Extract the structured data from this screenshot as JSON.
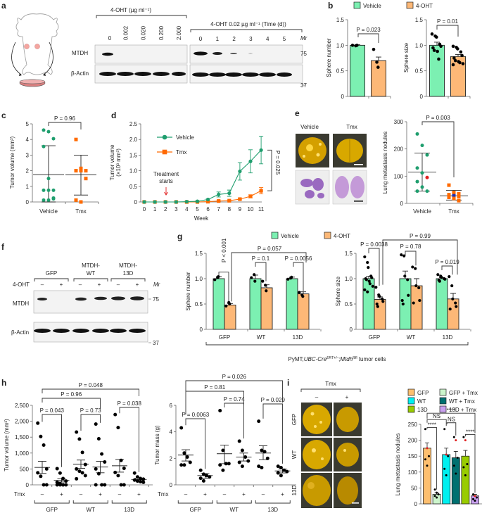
{
  "panels": {
    "a": {
      "label": "a",
      "blot1_title": "4-OHT (µg ml⁻¹)",
      "blot1_lanes": [
        "0",
        "0.002",
        "0.020",
        "0.200",
        "2.000"
      ],
      "blot2_title": "4-OHT 0.02 µg ml⁻¹ (Time (d))",
      "blot2_lanes": [
        "0",
        "1",
        "2",
        "3",
        "4",
        "5"
      ],
      "rows": [
        "MTDH",
        "β-Actin"
      ],
      "mr_label": "Mr",
      "markers": [
        "75",
        "37"
      ]
    },
    "b": {
      "label": "b"
    },
    "c": {
      "label": "c"
    },
    "d": {
      "label": "d"
    },
    "e": {
      "label": "e",
      "image_labels": [
        "Vehicle",
        "Tmx"
      ]
    },
    "f": {
      "label": "f",
      "groups": [
        "GFP",
        "MTDH-\nWT",
        "MTDH-\n13D"
      ],
      "group_line1": [
        "GFP",
        "MTDH-",
        "MTDH-"
      ],
      "group_line2": [
        "",
        "WT",
        "13D"
      ],
      "treatment_label": "4-OHT",
      "signs": [
        "–",
        "+",
        "–",
        "+",
        "–",
        "+"
      ],
      "rows": [
        "MTDH",
        "β-Actin"
      ],
      "mr_label": "Mr",
      "markers": [
        "75",
        "37"
      ]
    },
    "g": {
      "label": "g",
      "footer": "PyMT;UBC-CreERT+/–;Mtdhfl/fl tumor cells",
      "footer_parts": [
        "PyMT;",
        "UBC-Cre",
        "ERT+/–",
        ";",
        "Mtdh",
        "fl/fl",
        " tumor cells"
      ]
    },
    "h": {
      "label": "h",
      "tmx_label": "Tmx"
    },
    "i": {
      "label": "i",
      "tmx_label": "Tmx",
      "row_labels": [
        "GFP",
        "WT",
        "13D"
      ],
      "col_labels": [
        "–",
        "+"
      ]
    }
  },
  "legend_vehicle_4oht": {
    "items": [
      {
        "label": "Vehicle",
        "color": "#7cf0b2"
      },
      {
        "label": "4-OHT",
        "color": "#fdb877"
      }
    ]
  },
  "legend_i": {
    "items": [
      {
        "label": "GFP",
        "color": "#fdbf6f"
      },
      {
        "label": "GFP + Tmx",
        "color": "#ccf5cc"
      },
      {
        "label": "WT",
        "color": "#00f0f0"
      },
      {
        "label": "WT + Tmx",
        "color": "#007070"
      },
      {
        "label": "13D",
        "color": "#99cc00"
      },
      {
        "label": "13D + Tmx",
        "color": "#c9a0f0"
      }
    ]
  },
  "chart_data": [
    {
      "id": "b1",
      "type": "bar",
      "ylabel": "Sphere number",
      "ylim": [
        0,
        1.5
      ],
      "yticks": [
        "0",
        "0.5",
        "1.0",
        "1.5"
      ],
      "categories": [
        "Vehicle",
        "4-OHT"
      ],
      "values": [
        1.0,
        0.7
      ],
      "errors": [
        0.01,
        0.07
      ],
      "points": [
        [
          1.0,
          0.99,
          1.0
        ],
        [
          0.92,
          0.67,
          0.57
        ]
      ],
      "annotations": [
        {
          "text": "P = 0.023"
        }
      ]
    },
    {
      "id": "b2",
      "type": "bar",
      "ylabel": "Sphere size",
      "ylim": [
        0,
        1.5
      ],
      "yticks": [
        "0",
        "0.5",
        "1.0",
        "1.5"
      ],
      "categories": [
        "Vehicle",
        "4-OHT"
      ],
      "values": [
        1.0,
        0.78
      ],
      "errors": [
        0.06,
        0.04
      ],
      "points": [
        [
          1.22,
          1.18,
          1.16,
          1.02,
          0.98,
          0.95,
          0.9,
          0.88,
          0.73
        ],
        [
          0.98,
          0.96,
          0.93,
          0.87,
          0.8,
          0.75,
          0.7,
          0.68,
          0.66,
          0.64,
          0.62
        ]
      ],
      "annotations": [
        {
          "text": "P = 0.01"
        }
      ]
    },
    {
      "id": "c",
      "type": "scatter",
      "ylabel": "Tumor volume (mm³)",
      "ylim": [
        0,
        5
      ],
      "yticks": [
        "0",
        "1",
        "2",
        "3",
        "4",
        "5"
      ],
      "categories": [
        "Vehicle",
        "Tmx"
      ],
      "means": [
        1.75,
        1.73
      ],
      "sd_upper": [
        3.6,
        3.0
      ],
      "sd_lower": [
        0,
        0.44
      ],
      "points": [
        [
          4.6,
          4.5,
          4.05,
          3.55,
          1.5,
          0.75,
          0.75,
          0.75,
          0.2,
          0.12,
          0.12,
          0.25
        ],
        [
          4.0,
          2.15,
          2.0,
          2.0,
          2.0,
          1.5,
          0.12,
          0.0
        ]
      ],
      "annotations": [
        {
          "text": "P = 0.96"
        }
      ]
    },
    {
      "id": "d",
      "type": "line",
      "xlabel": "Week",
      "ylabel": "Tumor volume",
      "ylabel2": "(×10³ mm³)",
      "ylim": [
        0,
        2.5
      ],
      "yticks": [
        "0",
        "0.5",
        "1.0",
        "1.5",
        "2.0",
        "2.5"
      ],
      "x": [
        0,
        1,
        2,
        3,
        4,
        5,
        6,
        7,
        8,
        9,
        10,
        11
      ],
      "series": [
        {
          "name": "Vehicle",
          "color": "#1f9e6e",
          "values": [
            0,
            0,
            0,
            0,
            0.01,
            0.02,
            0.08,
            0.24,
            0.28,
            0.98,
            1.3,
            1.66
          ],
          "errors": [
            0,
            0,
            0,
            0,
            0,
            0.01,
            0.02,
            0.08,
            0.1,
            0.28,
            0.37,
            0.44
          ]
        },
        {
          "name": "Tmx",
          "color": "#ff6a00",
          "values": [
            0,
            0,
            0,
            0,
            0,
            0,
            0.01,
            0.03,
            0.04,
            0.09,
            0.18,
            0.36
          ],
          "errors": [
            0,
            0,
            0,
            0,
            0,
            0,
            0,
            0.01,
            0.01,
            0.02,
            0.05,
            0.1
          ]
        }
      ],
      "annotations": [
        {
          "text": "Treatment\nstarts",
          "line1": "Treatment",
          "line2": "starts",
          "x": 2
        },
        {
          "text": "P = 0.025"
        }
      ]
    },
    {
      "id": "e",
      "type": "scatter",
      "ylabel": "Lung metastasis nodules",
      "ylim": [
        0,
        300
      ],
      "yticks": [
        "0",
        "100",
        "200",
        "300"
      ],
      "categories": [
        "Vehicle",
        "Tmx"
      ],
      "means": [
        115,
        28
      ],
      "sd_upper": [
        185,
        48
      ],
      "sd_lower": [
        45,
        12
      ],
      "points": [
        [
          255,
          213,
          178,
          130,
          112,
          95,
          80,
          60,
          45,
          45
        ],
        [
          67,
          40,
          35,
          32,
          28,
          25,
          22,
          18,
          10
        ]
      ],
      "annotations": [
        {
          "text": "P = 0.003"
        }
      ]
    },
    {
      "id": "g1",
      "type": "bar",
      "ylabel": "Sphere number",
      "ylim": [
        0,
        1.5
      ],
      "yticks": [
        "0",
        "0.5",
        "1.0",
        "1.5"
      ],
      "categories": [
        "GFP",
        "WT",
        "13D"
      ],
      "series": [
        {
          "name": "Vehicle",
          "values": [
            1.0,
            1.0,
            1.0
          ],
          "errors": [
            0.04,
            0.07,
            0.03
          ]
        },
        {
          "name": "4-OHT",
          "values": [
            0.48,
            0.82,
            0.7
          ],
          "errors": [
            0.03,
            0.06,
            0.04
          ]
        }
      ],
      "points": [
        [
          [
            0.98,
            1.02,
            1.04
          ],
          [
            0.46,
            0.53,
            0.5
          ]
        ],
        [
          [
            1.02,
            1.08,
            0.95
          ],
          [
            0.95,
            0.87,
            0.76
          ]
        ],
        [
          [
            0.99,
            1.01,
            1.03
          ],
          [
            0.73,
            0.68,
            0.65
          ]
        ]
      ],
      "annotations": [
        {
          "text": "P < 0.001"
        },
        {
          "text": "P = 0.1"
        },
        {
          "text": "P = 0.0056"
        },
        {
          "text": "P = 0.057"
        }
      ]
    },
    {
      "id": "g2",
      "type": "bar",
      "ylabel": "Sphere size",
      "ylim": [
        0,
        1.5
      ],
      "yticks": [
        "0",
        "0.5",
        "1.0",
        "1.5"
      ],
      "categories": [
        "GFP",
        "WT",
        "13D"
      ],
      "series": [
        {
          "name": "Vehicle",
          "values": [
            1.0,
            1.0,
            1.0
          ],
          "errors": [
            0.05,
            0.15,
            0.02
          ]
        },
        {
          "name": "4-OHT",
          "values": [
            0.59,
            0.86,
            0.6
          ],
          "errors": [
            0.05,
            0.14,
            0.11
          ]
        }
      ],
      "points": [
        [
          [
            1.43,
            1.32,
            1.22,
            1.05,
            1.02,
            1.0,
            0.98,
            0.95,
            0.9,
            0.85,
            0.78,
            0.74
          ],
          [
            0.83,
            0.68,
            0.65,
            0.6,
            0.55,
            0.5,
            0.45
          ]
        ],
        [
          [
            1.47,
            1.45,
            1.05,
            0.98,
            0.67,
            0.57,
            0.5
          ],
          [
            1.23,
            1.2,
            0.86,
            0.82,
            0.57,
            0.52
          ]
        ],
        [
          [
            1.08,
            1.05,
            1.03,
            1.0,
            0.99,
            0.97,
            0.95
          ],
          [
            1.04,
            0.86,
            0.6,
            0.52,
            0.45,
            0.4
          ]
        ]
      ],
      "annotations": [
        {
          "text": "P = 0.0038"
        },
        {
          "text": "P = 0.78"
        },
        {
          "text": "P = 0.019"
        },
        {
          "text": "P = 0.99"
        }
      ]
    },
    {
      "id": "h1",
      "type": "scatter",
      "ylabel": "Tumor volume (mm³)",
      "ylim": [
        0,
        2500
      ],
      "yticks": [
        "0",
        "500",
        "1,000",
        "1,500",
        "2,000",
        "2,500"
      ],
      "categories": [
        "GFP –",
        "GFP +",
        "WT –",
        "WT +",
        "13D –",
        "13D +"
      ],
      "xgroups": [
        "GFP",
        "WT",
        "13D"
      ],
      "signs": [
        "–",
        "+",
        "–",
        "+",
        "–",
        "+"
      ],
      "means": [
        550,
        140,
        650,
        560,
        600,
        170
      ],
      "sem_upper": [
        740,
        190,
        780,
        740,
        800,
        210
      ],
      "sem_lower": [
        360,
        90,
        520,
        380,
        400,
        130
      ],
      "points": [
        [
          1940,
          1520,
          1250,
          500,
          380,
          270,
          0,
          0
        ],
        [
          510,
          370,
          200,
          120,
          80,
          40,
          0,
          0,
          0,
          0,
          0
        ],
        [
          1660,
          1440,
          1020,
          640,
          500,
          430,
          380,
          290,
          190
        ],
        [
          1910,
          1450,
          970,
          720,
          500,
          350,
          0,
          0,
          0
        ],
        [
          2210,
          1800,
          770,
          520,
          390,
          290,
          0,
          0
        ],
        [
          370,
          250,
          200,
          180,
          150,
          120,
          100,
          80
        ]
      ],
      "annotations": [
        {
          "text": "P = 0.043"
        },
        {
          "text": "P = 0.73"
        },
        {
          "text": "P = 0.038"
        },
        {
          "text": "P = 0.96"
        },
        {
          "text": "P = 0.048"
        }
      ]
    },
    {
      "id": "h2",
      "type": "scatter",
      "ylabel": "Tumor mass (g)",
      "ylim": [
        0,
        6
      ],
      "yticks": [
        "0",
        "2",
        "4",
        "6"
      ],
      "categories": [
        "GFP –",
        "GFP +",
        "WT –",
        "WT +",
        "13D –",
        "13D +"
      ],
      "xgroups": [
        "GFP",
        "WT",
        "13D"
      ],
      "signs": [
        "–",
        "+",
        "–",
        "+",
        "–",
        "+"
      ],
      "means": [
        2.25,
        0.7,
        2.35,
        2.1,
        2.4,
        1.05
      ],
      "sem_upper": [
        2.65,
        0.85,
        3.0,
        2.4,
        2.95,
        1.2
      ],
      "sem_lower": [
        1.8,
        0.5,
        1.6,
        1.8,
        1.9,
        0.9
      ],
      "points": [
        [
          4.3,
          2.4,
          2.1,
          1.7,
          1.5,
          1.5
        ],
        [
          1.1,
          0.8,
          0.7,
          0.6,
          0.5,
          0.3
        ],
        [
          5.6,
          2.6,
          1.6,
          1.6,
          1.5,
          1.1
        ],
        [
          3.3,
          2.6,
          2.1,
          1.8,
          1.7,
          1.4
        ],
        [
          4.8,
          2.6,
          2.5,
          2.0,
          1.4,
          1.3
        ],
        [
          1.4,
          1.3,
          1.1,
          1.0,
          0.9,
          0.7
        ]
      ],
      "annotations": [
        {
          "text": "P = 0.0063"
        },
        {
          "text": "P = 0.74"
        },
        {
          "text": "P = 0.029"
        },
        {
          "text": "P = 0.81"
        },
        {
          "text": "P = 0.026"
        }
      ]
    },
    {
      "id": "i",
      "type": "bar",
      "ylabel": "Lung metastasis nodules",
      "ylim": [
        0,
        250
      ],
      "yticks": [
        "0",
        "50",
        "100",
        "150",
        "200",
        "250"
      ],
      "categories": [
        "GFP",
        "GFP + Tmx",
        "WT",
        "WT + Tmx",
        "13D",
        "13D + Tmx"
      ],
      "values": [
        175,
        30,
        155,
        145,
        150,
        25
      ],
      "errors": [
        17,
        5,
        20,
        20,
        18,
        5
      ],
      "points": [
        [
          235,
          175,
          150,
          140,
          120
        ],
        [
          45,
          35,
          30,
          25,
          20
        ],
        [
          235,
          155,
          150,
          110,
          90
        ],
        [
          210,
          200,
          145,
          120,
          95
        ],
        [
          210,
          200,
          125,
          115,
          90
        ],
        [
          30,
          25,
          20,
          15,
          10
        ]
      ],
      "annotations": [
        {
          "text": "****"
        },
        {
          "text": "NS"
        },
        {
          "text": "NS"
        },
        {
          "text": "****"
        },
        {
          "text": "****"
        }
      ]
    }
  ]
}
